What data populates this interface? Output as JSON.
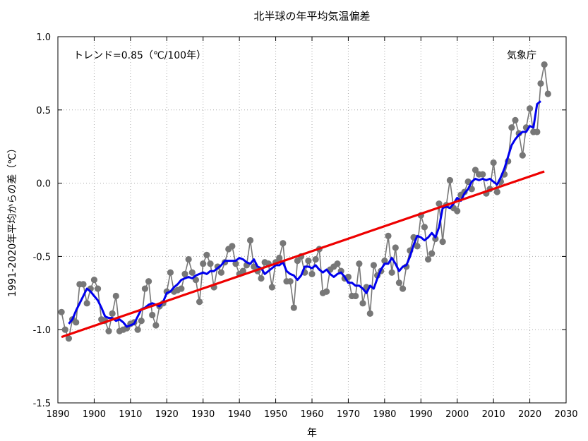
{
  "chart_data": {
    "type": "line",
    "title": "北半球の年平均気温偏差",
    "xlabel": "年",
    "ylabel": "1991-2020年平均からの差（℃）",
    "trend_label": "トレンド=0.85（℃/100年）",
    "source_label": "気象庁",
    "xlim": [
      1890,
      2030
    ],
    "ylim": [
      -1.5,
      1.0
    ],
    "x_ticks": [
      1890,
      1900,
      1910,
      1920,
      1930,
      1940,
      1950,
      1960,
      1970,
      1980,
      1990,
      2000,
      2010,
      2020,
      2030
    ],
    "y_ticks": [
      -1.5,
      -1.0,
      -0.5,
      0.0,
      0.5,
      1.0
    ],
    "y_tick_labels": [
      "-1.5",
      "-1.0",
      "-0.5",
      "0.0",
      "0.5",
      "1.0"
    ],
    "grid": true,
    "series": [
      {
        "role": "annual",
        "color": "#777777",
        "marker": "circle",
        "x": [
          1891,
          1892,
          1893,
          1894,
          1895,
          1896,
          1897,
          1898,
          1899,
          1900,
          1901,
          1902,
          1903,
          1904,
          1905,
          1906,
          1907,
          1908,
          1909,
          1910,
          1911,
          1912,
          1913,
          1914,
          1915,
          1916,
          1917,
          1918,
          1919,
          1920,
          1921,
          1922,
          1923,
          1924,
          1925,
          1926,
          1927,
          1928,
          1929,
          1930,
          1931,
          1932,
          1933,
          1934,
          1935,
          1936,
          1937,
          1938,
          1939,
          1940,
          1941,
          1942,
          1943,
          1944,
          1945,
          1946,
          1947,
          1948,
          1949,
          1950,
          1951,
          1952,
          1953,
          1954,
          1955,
          1956,
          1957,
          1958,
          1959,
          1960,
          1961,
          1962,
          1963,
          1964,
          1965,
          1966,
          1967,
          1968,
          1969,
          1970,
          1971,
          1972,
          1973,
          1974,
          1975,
          1976,
          1977,
          1978,
          1979,
          1980,
          1981,
          1982,
          1983,
          1984,
          1985,
          1986,
          1987,
          1988,
          1989,
          1990,
          1991,
          1992,
          1993,
          1994,
          1995,
          1996,
          1997,
          1998,
          1999,
          2000,
          2001,
          2002,
          2003,
          2004,
          2005,
          2006,
          2007,
          2008,
          2009,
          2010,
          2011,
          2012,
          2013,
          2014,
          2015,
          2016,
          2017,
          2018,
          2019,
          2020,
          2021,
          2022,
          2023,
          2024,
          2025
        ],
        "values": [
          -0.88,
          -1.0,
          -1.06,
          -0.93,
          -0.95,
          -0.69,
          -0.69,
          -0.82,
          -0.72,
          -0.66,
          -0.72,
          -0.93,
          -0.94,
          -1.01,
          -0.89,
          -0.77,
          -1.01,
          -1.0,
          -0.99,
          -0.96,
          -0.95,
          -1.0,
          -0.94,
          -0.72,
          -0.67,
          -0.9,
          -0.97,
          -0.84,
          -0.82,
          -0.74,
          -0.61,
          -0.74,
          -0.73,
          -0.72,
          -0.62,
          -0.52,
          -0.61,
          -0.66,
          -0.81,
          -0.55,
          -0.49,
          -0.55,
          -0.71,
          -0.57,
          -0.61,
          -0.54,
          -0.45,
          -0.43,
          -0.55,
          -0.62,
          -0.6,
          -0.56,
          -0.39,
          -0.57,
          -0.6,
          -0.65,
          -0.54,
          -0.55,
          -0.71,
          -0.54,
          -0.51,
          -0.41,
          -0.67,
          -0.67,
          -0.85,
          -0.53,
          -0.5,
          -0.61,
          -0.53,
          -0.62,
          -0.52,
          -0.45,
          -0.75,
          -0.74,
          -0.59,
          -0.57,
          -0.55,
          -0.6,
          -0.65,
          -0.64,
          -0.77,
          -0.77,
          -0.55,
          -0.82,
          -0.71,
          -0.89,
          -0.56,
          -0.63,
          -0.6,
          -0.53,
          -0.36,
          -0.61,
          -0.44,
          -0.68,
          -0.72,
          -0.57,
          -0.46,
          -0.37,
          -0.43,
          -0.22,
          -0.3,
          -0.52,
          -0.48,
          -0.38,
          -0.14,
          -0.4,
          -0.15,
          0.02,
          -0.17,
          -0.19,
          -0.08,
          -0.06,
          0.01,
          -0.04,
          0.09,
          0.06,
          0.06,
          -0.07,
          -0.04,
          0.14,
          -0.06,
          0.01,
          0.06,
          0.15,
          0.38,
          0.43,
          0.34,
          0.19,
          0.38,
          0.51,
          0.35,
          0.35,
          0.68,
          0.81,
          0.61
        ]
      },
      {
        "role": "five_year_running_mean",
        "color": "#0000ee",
        "x": [
          1893,
          1894,
          1895,
          1896,
          1897,
          1898,
          1899,
          1900,
          1901,
          1902,
          1903,
          1904,
          1905,
          1906,
          1907,
          1908,
          1909,
          1910,
          1911,
          1912,
          1913,
          1914,
          1915,
          1916,
          1917,
          1918,
          1919,
          1920,
          1921,
          1922,
          1923,
          1924,
          1925,
          1926,
          1927,
          1928,
          1929,
          1930,
          1931,
          1932,
          1933,
          1934,
          1935,
          1936,
          1937,
          1938,
          1939,
          1940,
          1941,
          1942,
          1943,
          1944,
          1945,
          1946,
          1947,
          1948,
          1949,
          1950,
          1951,
          1952,
          1953,
          1954,
          1955,
          1956,
          1957,
          1958,
          1959,
          1960,
          1961,
          1962,
          1963,
          1964,
          1965,
          1966,
          1967,
          1968,
          1969,
          1970,
          1971,
          1972,
          1973,
          1974,
          1975,
          1976,
          1977,
          1978,
          1979,
          1980,
          1981,
          1982,
          1983,
          1984,
          1985,
          1986,
          1987,
          1988,
          1989,
          1990,
          1991,
          1992,
          1993,
          1994,
          1995,
          1996,
          1997,
          1998,
          1999,
          2000,
          2001,
          2002,
          2003,
          2004,
          2005,
          2006,
          2007,
          2008,
          2009,
          2010,
          2011,
          2012,
          2013,
          2014,
          2015,
          2016,
          2017,
          2018,
          2019,
          2020,
          2021,
          2022,
          2023
        ],
        "values": [
          -0.96,
          -0.93,
          -0.87,
          -0.82,
          -0.77,
          -0.72,
          -0.74,
          -0.77,
          -0.8,
          -0.85,
          -0.91,
          -0.92,
          -0.92,
          -0.94,
          -0.93,
          -0.95,
          -0.98,
          -0.97,
          -0.96,
          -0.91,
          -0.86,
          -0.85,
          -0.83,
          -0.82,
          -0.83,
          -0.84,
          -0.81,
          -0.75,
          -0.74,
          -0.71,
          -0.69,
          -0.66,
          -0.65,
          -0.64,
          -0.65,
          -0.63,
          -0.62,
          -0.61,
          -0.62,
          -0.6,
          -0.6,
          -0.58,
          -0.56,
          -0.53,
          -0.53,
          -0.53,
          -0.53,
          -0.51,
          -0.52,
          -0.54,
          -0.55,
          -0.52,
          -0.57,
          -0.58,
          -0.62,
          -0.6,
          -0.58,
          -0.56,
          -0.56,
          -0.54,
          -0.6,
          -0.62,
          -0.63,
          -0.66,
          -0.63,
          -0.57,
          -0.57,
          -0.58,
          -0.56,
          -0.59,
          -0.61,
          -0.59,
          -0.62,
          -0.64,
          -0.62,
          -0.61,
          -0.64,
          -0.68,
          -0.68,
          -0.7,
          -0.7,
          -0.72,
          -0.75,
          -0.7,
          -0.72,
          -0.65,
          -0.59,
          -0.55,
          -0.55,
          -0.51,
          -0.55,
          -0.6,
          -0.57,
          -0.56,
          -0.5,
          -0.42,
          -0.36,
          -0.37,
          -0.39,
          -0.37,
          -0.34,
          -0.37,
          -0.3,
          -0.17,
          -0.16,
          -0.17,
          -0.14,
          -0.1,
          -0.12,
          -0.07,
          -0.04,
          0.01,
          0.03,
          0.02,
          0.03,
          0.02,
          0.03,
          0.01,
          -0.01,
          0.04,
          0.1,
          0.18,
          0.26,
          0.3,
          0.33,
          0.35,
          0.35,
          0.39,
          0.38,
          0.54,
          0.56
        ]
      },
      {
        "role": "trend",
        "color": "#ee0000",
        "x": [
          1891,
          2024
        ],
        "values": [
          -1.05,
          0.08
        ]
      }
    ]
  }
}
